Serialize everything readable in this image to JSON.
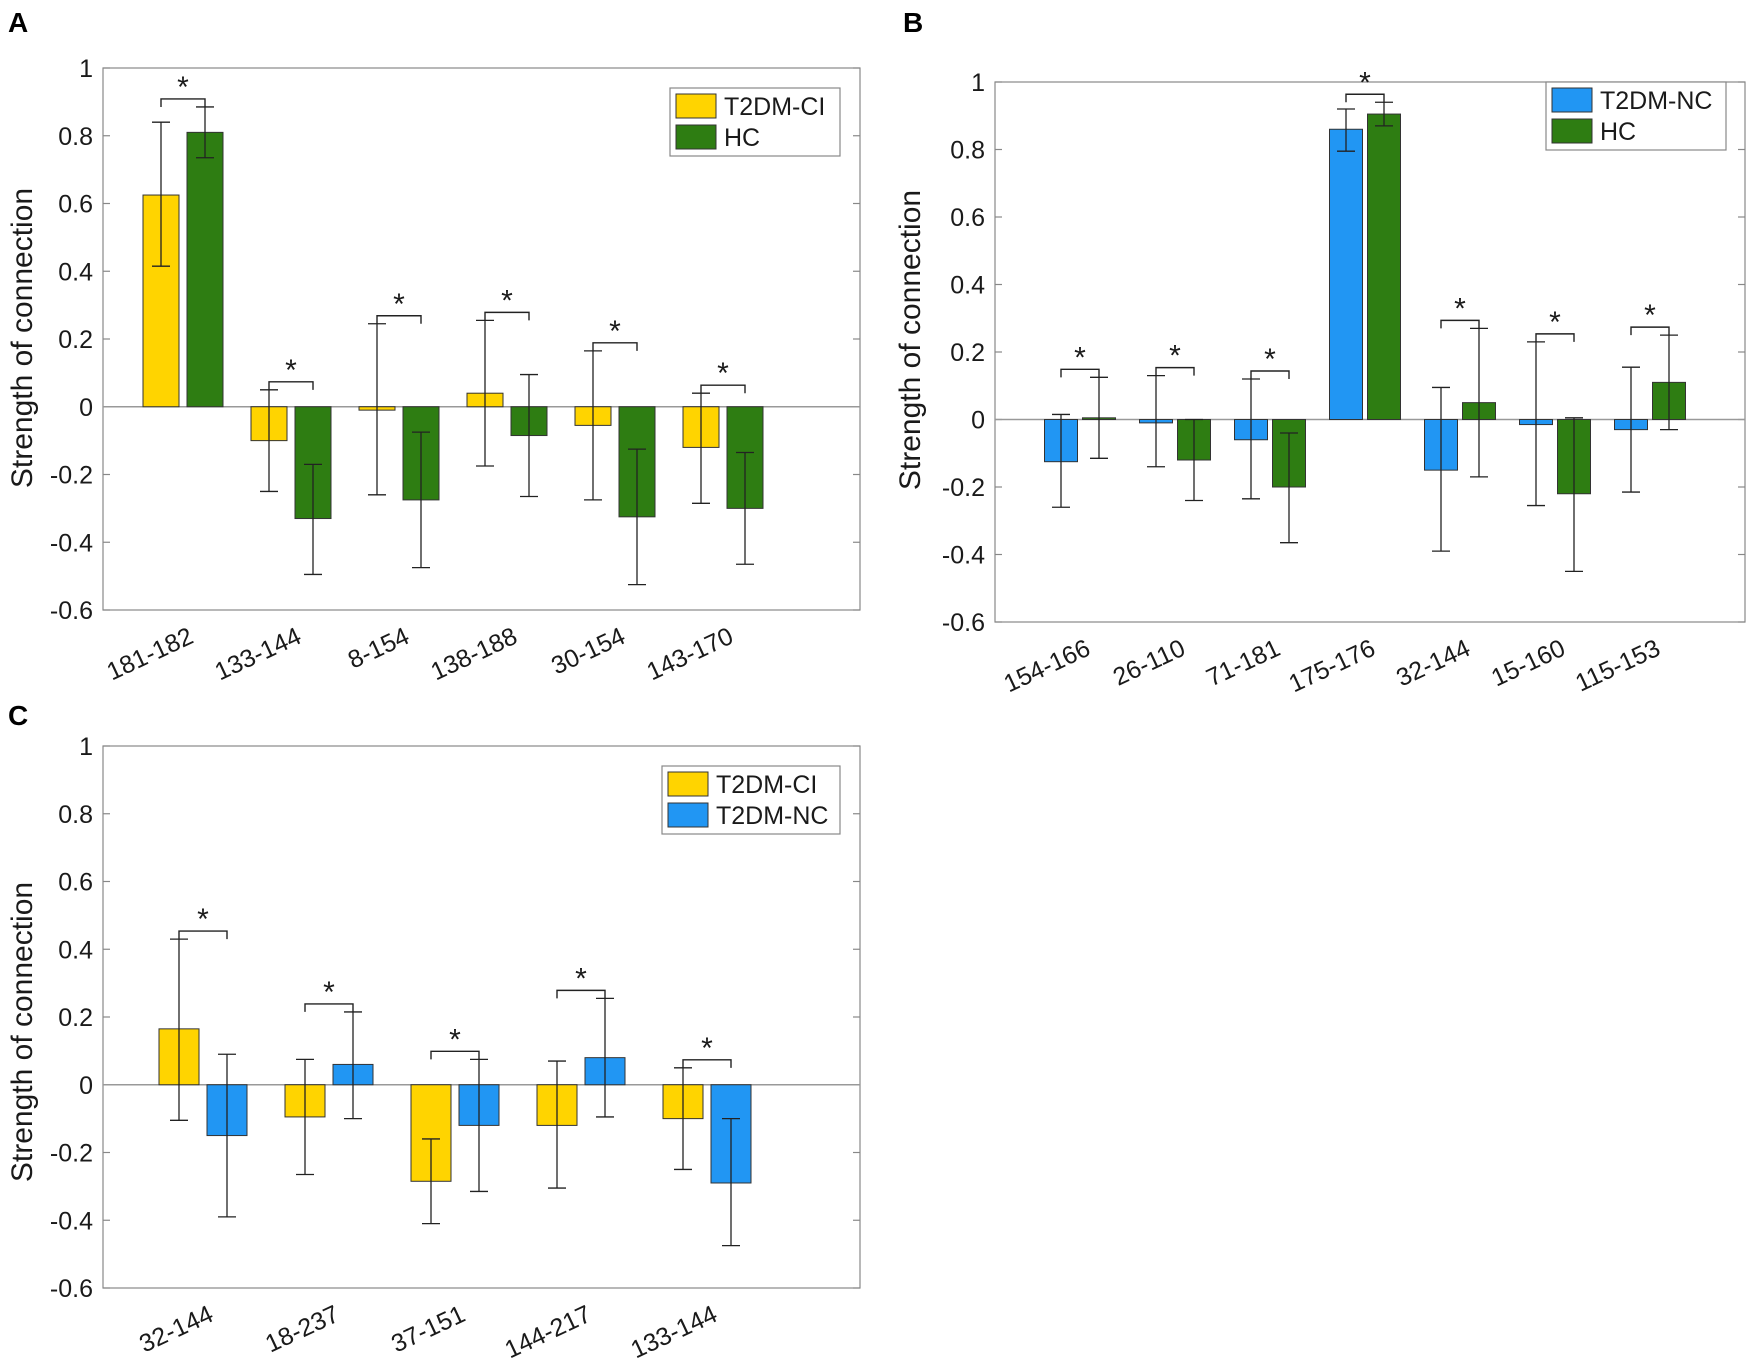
{
  "colors": {
    "T2DM-CI": "#ffd400",
    "HC": "#2e7d12",
    "T2DM-NC": "#2196f3",
    "edge": "#333333",
    "axis": "#888888",
    "zero": "#999999"
  },
  "chart_data": [
    {
      "panel": "A",
      "type": "bar",
      "ylabel": "Strength of connection",
      "ylim": [
        -0.6,
        1
      ],
      "yticks": [
        "1",
        "0.8",
        "0.6",
        "0.4",
        "0.2",
        "0",
        "-0.2",
        "-0.4",
        "-0.6"
      ],
      "yticks_values": [
        1,
        0.8,
        0.6,
        0.4,
        0.2,
        0,
        -0.2,
        -0.4,
        -0.6
      ],
      "categories": [
        "181-182",
        "133-144",
        "8-154",
        "138-188",
        "30-154",
        "143-170"
      ],
      "significance": [
        "*",
        "*",
        "*",
        "*",
        "*",
        "*"
      ],
      "legend": [
        "T2DM-CI",
        "HC"
      ],
      "series": [
        {
          "name": "T2DM-CI",
          "values": [
            0.625,
            -0.1,
            -0.01,
            0.04,
            -0.055,
            -0.12
          ],
          "err_low": [
            0.415,
            -0.25,
            -0.26,
            -0.175,
            -0.275,
            -0.285
          ],
          "err_high": [
            0.84,
            0.05,
            0.245,
            0.255,
            0.165,
            0.04
          ]
        },
        {
          "name": "HC",
          "values": [
            0.81,
            -0.33,
            -0.275,
            -0.085,
            -0.325,
            -0.3
          ],
          "err_low": [
            0.735,
            -0.495,
            -0.475,
            -0.265,
            -0.525,
            -0.465
          ],
          "err_high": [
            0.885,
            -0.17,
            -0.075,
            0.095,
            -0.125,
            -0.135
          ]
        }
      ]
    },
    {
      "panel": "B",
      "type": "bar",
      "ylabel": "Strength of connection",
      "ylim": [
        -0.6,
        1
      ],
      "yticks": [
        "1",
        "0.8",
        "0.6",
        "0.4",
        "0.2",
        "0",
        "-0.2",
        "-0.4",
        "-0.6"
      ],
      "yticks_values": [
        1,
        0.8,
        0.6,
        0.4,
        0.2,
        0,
        -0.2,
        -0.4,
        -0.6
      ],
      "categories": [
        "154-166",
        "26-110",
        "71-181",
        "175-176",
        "32-144",
        "15-160",
        "115-153"
      ],
      "significance": [
        "*",
        "*",
        "*",
        "*",
        "*",
        "*",
        "*"
      ],
      "legend": [
        "T2DM-NC",
        "HC"
      ],
      "series": [
        {
          "name": "T2DM-NC",
          "values": [
            -0.125,
            -0.01,
            -0.06,
            0.86,
            -0.15,
            -0.015,
            -0.03
          ],
          "err_low": [
            -0.26,
            -0.14,
            -0.235,
            0.795,
            -0.39,
            -0.255,
            -0.215
          ],
          "err_high": [
            0.015,
            0.13,
            0.12,
            0.92,
            0.095,
            0.23,
            0.155
          ]
        },
        {
          "name": "HC",
          "values": [
            0.005,
            -0.12,
            -0.2,
            0.905,
            0.05,
            -0.22,
            0.11
          ],
          "err_low": [
            -0.115,
            -0.24,
            -0.365,
            0.87,
            -0.17,
            -0.45,
            -0.03
          ],
          "err_high": [
            0.125,
            0.0,
            -0.04,
            0.94,
            0.27,
            0.005,
            0.25
          ]
        }
      ]
    },
    {
      "panel": "C",
      "type": "bar",
      "ylabel": "Strength of connection",
      "ylim": [
        -0.6,
        1
      ],
      "yticks": [
        "1",
        "0.8",
        "0.6",
        "0.4",
        "0.2",
        "0",
        "-0.2",
        "-0.4",
        "-0.6"
      ],
      "yticks_values": [
        1,
        0.8,
        0.6,
        0.4,
        0.2,
        0,
        -0.2,
        -0.4,
        -0.6
      ],
      "categories": [
        "32-144",
        "18-237",
        "37-151",
        "144-217",
        "133-144"
      ],
      "significance": [
        "*",
        "*",
        "*",
        "*",
        "*"
      ],
      "legend": [
        "T2DM-CI",
        "T2DM-NC"
      ],
      "series": [
        {
          "name": "T2DM-CI",
          "values": [
            0.165,
            -0.095,
            -0.285,
            -0.12,
            -0.1
          ],
          "err_low": [
            -0.105,
            -0.265,
            -0.41,
            -0.305,
            -0.25
          ],
          "err_high": [
            0.43,
            0.075,
            -0.16,
            0.07,
            0.05
          ]
        },
        {
          "name": "T2DM-NC",
          "values": [
            -0.15,
            0.06,
            -0.12,
            0.08,
            -0.29
          ],
          "err_low": [
            -0.39,
            -0.1,
            -0.315,
            -0.095,
            -0.475
          ],
          "err_high": [
            0.09,
            0.215,
            0.075,
            0.255,
            -0.1
          ]
        }
      ]
    }
  ]
}
